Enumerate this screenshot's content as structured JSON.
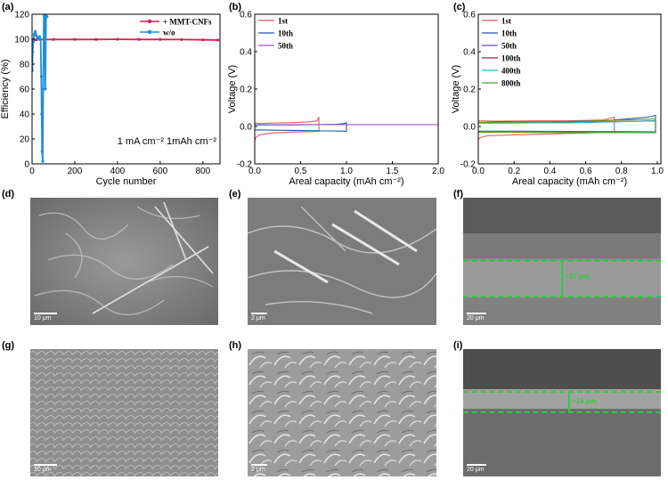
{
  "panels": {
    "a": "(a)",
    "b": "(b)",
    "c": "(c)",
    "d": "(d)",
    "e": "(e)",
    "f": "(f)",
    "g": "(g)",
    "h": "(h)",
    "i": "(i)"
  },
  "chart_data": [
    {
      "id": "a",
      "type": "line",
      "xlabel": "Cycle number",
      "ylabel": "Efficiency (%)",
      "xticks": [
        "0",
        "200",
        "400",
        "600",
        "800"
      ],
      "yticks": [
        "0",
        "20",
        "40",
        "60",
        "80",
        "100",
        "120"
      ],
      "xlim": [
        0,
        880
      ],
      "ylim": [
        0,
        120
      ],
      "annotation": "1 mA cm⁻² 1mAh cm⁻²",
      "legend_position": "top-right",
      "series": [
        {
          "name": "+ MMT-CNFs",
          "color": "#d6204f",
          "x": [
            1,
            5,
            10,
            20,
            40,
            100,
            200,
            300,
            400,
            500,
            600,
            700,
            800,
            870
          ],
          "y": [
            97,
            99,
            99.5,
            99.6,
            99.7,
            99.8,
            99.8,
            99.8,
            99.9,
            99.8,
            99.8,
            99.7,
            99.5,
            99.3
          ]
        },
        {
          "name": "w/o",
          "color": "#1f8fd6",
          "x": [
            1,
            3,
            6,
            10,
            15,
            20,
            25,
            30,
            35,
            40,
            43,
            45,
            47,
            50,
            52,
            55,
            58,
            62,
            66,
            70
          ],
          "y": [
            75,
            90,
            98,
            104,
            106,
            103,
            101,
            100,
            102,
            100,
            70,
            40,
            10,
            2,
            60,
            120,
            118,
            60,
            120,
            118
          ]
        }
      ]
    },
    {
      "id": "b",
      "type": "line",
      "xlabel": "Areal capacity (mAh cm⁻²)",
      "ylabel": "Voltage (V)",
      "xticks": [
        "0.0",
        "0.5",
        "1.0",
        "1.5",
        "2.0"
      ],
      "yticks": [
        "-0.2",
        "0.0",
        "0.2",
        "0.4",
        "0.6"
      ],
      "xlim": [
        0,
        2.0
      ],
      "ylim": [
        -0.2,
        0.6
      ],
      "legend_position": "top-left",
      "series": [
        {
          "name": "1st",
          "color": "#e85a5a",
          "x": [
            0.0,
            0.01,
            0.05,
            0.2,
            0.4,
            0.6,
            0.7,
            0.7,
            0.68,
            0.6,
            0.4,
            0.2,
            0.05,
            0.0
          ],
          "y": [
            -0.08,
            -0.06,
            -0.045,
            -0.035,
            -0.03,
            -0.028,
            -0.026,
            0.05,
            0.03,
            0.025,
            0.02,
            0.018,
            0.015,
            0.02
          ]
        },
        {
          "name": "10th",
          "color": "#1e5aa8",
          "x": [
            0.0,
            0.02,
            0.2,
            0.5,
            0.8,
            1.0,
            1.0,
            0.97,
            0.9,
            0.7,
            0.4,
            0.1,
            0.0
          ],
          "y": [
            -0.02,
            -0.018,
            -0.02,
            -0.022,
            -0.024,
            -0.025,
            0.02,
            0.015,
            0.012,
            0.01,
            0.008,
            0.008,
            0.01
          ]
        },
        {
          "name": "50th",
          "color": "#a05ad8",
          "x": [
            0.0,
            0.5,
            1.0,
            1.5,
            2.0
          ],
          "y": [
            0.008,
            0.01,
            0.01,
            0.01,
            0.01
          ]
        }
      ]
    },
    {
      "id": "c",
      "type": "line",
      "xlabel": "Areal capacity (mAh cm⁻²)",
      "ylabel": "Voltage (V)",
      "xticks": [
        "0.0",
        "0.2",
        "0.4",
        "0.6",
        "0.8",
        "1.0"
      ],
      "yticks": [
        "-0.2",
        "0.0",
        "0.2",
        "0.4",
        "0.6"
      ],
      "xlim": [
        0,
        1.02
      ],
      "ylim": [
        -0.2,
        0.6
      ],
      "legend_position": "top-left",
      "series": [
        {
          "name": "1st",
          "color": "#e85a5a",
          "x": [
            0.0,
            0.01,
            0.05,
            0.2,
            0.4,
            0.6,
            0.76,
            0.76,
            0.7,
            0.5,
            0.3,
            0.1,
            0.0
          ],
          "y": [
            -0.07,
            -0.06,
            -0.05,
            -0.045,
            -0.04,
            -0.035,
            -0.03,
            0.05,
            0.035,
            0.03,
            0.03,
            0.028,
            0.03
          ]
        },
        {
          "name": "10th",
          "color": "#1e5aa8",
          "x": [
            0.0,
            0.2,
            0.5,
            0.8,
            0.99,
            0.99,
            0.95,
            0.7,
            0.4,
            0.1,
            0.0
          ],
          "y": [
            -0.025,
            -0.025,
            -0.026,
            -0.027,
            -0.028,
            0.06,
            0.05,
            0.03,
            0.025,
            0.025,
            0.02
          ]
        },
        {
          "name": "50th",
          "color": "#6a4ab8",
          "x": [
            0.0,
            0.5,
            0.99,
            0.99,
            0.5,
            0.0
          ],
          "y": [
            -0.03,
            -0.03,
            -0.03,
            0.03,
            0.022,
            0.02
          ]
        },
        {
          "name": "100th",
          "color": "#8a2a2a",
          "x": [
            0.0,
            0.5,
            0.99,
            0.99,
            0.5,
            0.0
          ],
          "y": [
            -0.03,
            -0.032,
            -0.033,
            0.03,
            0.02,
            0.018
          ]
        },
        {
          "name": "400th",
          "color": "#2ab8d8",
          "x": [
            0.0,
            0.5,
            0.99,
            0.99,
            0.5,
            0.0
          ],
          "y": [
            -0.028,
            -0.03,
            -0.03,
            0.03,
            0.02,
            0.018
          ]
        },
        {
          "name": "800th",
          "color": "#5a9a2a",
          "x": [
            0.0,
            0.5,
            0.99,
            0.99,
            0.5,
            0.0
          ],
          "y": [
            -0.03,
            -0.032,
            -0.034,
            0.04,
            0.025,
            0.022
          ]
        }
      ]
    }
  ],
  "micrographs": {
    "d": {
      "scale": "10 μm"
    },
    "e": {
      "scale": "2 μm"
    },
    "f": {
      "scale": "20 μm",
      "thickness": "~47 μm"
    },
    "g": {
      "scale": "10 μm"
    },
    "h": {
      "scale": "2 μm"
    },
    "i": {
      "scale": "20 μm",
      "thickness": "~16 μm"
    }
  }
}
